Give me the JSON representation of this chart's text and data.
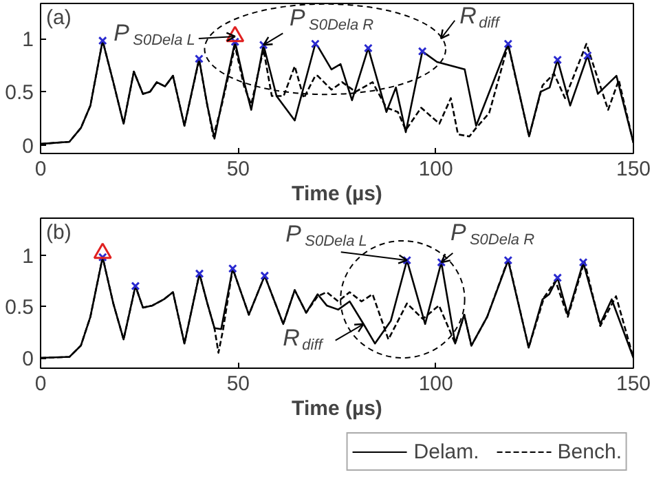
{
  "chart_data": [
    {
      "type": "line",
      "xlabel": "Time (µs)",
      "xlim": [
        0,
        150
      ],
      "xticks": [
        0,
        50,
        100,
        150
      ],
      "ylim": [
        -0.08,
        1.33
      ],
      "yticks": [
        0,
        0.5,
        1
      ],
      "grid": false,
      "legend": false,
      "series": [
        {
          "color": "#000000",
          "line_style": "solid",
          "x": [
            0,
            7.3,
            10.2,
            12.6,
            15.7,
            18.4,
            21,
            23.6,
            25.9,
            27.7,
            29.4,
            31.5,
            33.5,
            36.4,
            40.1,
            42.2,
            44,
            45.7,
            49.2,
            51.5,
            53.3,
            56.4,
            59.7,
            64.3,
            69.5,
            70.1,
            73.6,
            75.9,
            78.8,
            82.9,
            87.5,
            89.9,
            92.4,
            96.6,
            100.3,
            107.3,
            110.2,
            118.3,
            123.6,
            126.5,
            128.8,
            130.8,
            134,
            138.4,
            141,
            145.7,
            150
          ],
          "values": [
            0.01,
            0.03,
            0.16,
            0.37,
            0.98,
            0.59,
            0.2,
            0.69,
            0.48,
            0.5,
            0.59,
            0.55,
            0.65,
            0.18,
            0.81,
            0.37,
            0.06,
            0.37,
            0.97,
            0.59,
            0.33,
            0.94,
            0.46,
            0.23,
            0.95,
            0.93,
            0.71,
            0.76,
            0.42,
            0.91,
            0.31,
            0.54,
            0.12,
            0.88,
            0.78,
            0.71,
            0.18,
            0.95,
            0.08,
            0.5,
            0.54,
            0.8,
            0.37,
            0.84,
            0.48,
            0.65,
            0.02
          ]
        },
        {
          "color": "#000000",
          "line_style": "dashed",
          "x": [
            0,
            7.3,
            10.2,
            12.6,
            15.7,
            18.4,
            21,
            23.6,
            25.9,
            27.7,
            29.4,
            31.5,
            33.5,
            36.4,
            40.1,
            42.2,
            43.7,
            45.7,
            49.2,
            51.5,
            53.3,
            56.4,
            58.5,
            61.5,
            64.3,
            66.6,
            69.5,
            70.1,
            73.6,
            76.3,
            79.7,
            84,
            87.5,
            90.4,
            92.4,
            96.3,
            100.9,
            103.8,
            105.6,
            108.5,
            110.2,
            113.5,
            118.3,
            123.6,
            127,
            129.9,
            132.7,
            138.1,
            143.6,
            146.3,
            150
          ],
          "values": [
            0.01,
            0.03,
            0.16,
            0.37,
            0.98,
            0.59,
            0.2,
            0.69,
            0.48,
            0.5,
            0.59,
            0.55,
            0.65,
            0.18,
            0.8,
            0.37,
            0.08,
            0.35,
            0.93,
            0.55,
            0.38,
            0.9,
            0.46,
            0.46,
            0.74,
            0.44,
            0.65,
            0.65,
            0.52,
            0.59,
            0.5,
            0.59,
            0.35,
            0.31,
            0.14,
            0.35,
            0.2,
            0.44,
            0.1,
            0.08,
            0.16,
            0.3,
            0.94,
            0.08,
            0.56,
            0.67,
            0.44,
            0.95,
            0.33,
            0.61,
            0.02
          ]
        },
        {
          "type": "scatter",
          "marker": "cross",
          "color": "#2a2ad0",
          "x": [
            15.7,
            40.1,
            49.2,
            56.4,
            69.5,
            82.9,
            96.6,
            118.3,
            130.8,
            138.4
          ],
          "values": [
            0.98,
            0.81,
            0.97,
            0.94,
            0.95,
            0.91,
            0.88,
            0.95,
            0.8,
            0.84
          ]
        },
        {
          "type": "scatter",
          "marker": "triangle",
          "color": "#e02020",
          "x": [
            49.2
          ],
          "values": [
            1.02
          ]
        }
      ],
      "annotations": [
        "(a)",
        {
          "text": "P$_{S0Dela L}$",
          "x": 49.2,
          "y": 1.02
        },
        {
          "text": "P$_{S0Dela R}$",
          "x": 56.4,
          "y": 0.94
        },
        "R$_{diff}$"
      ]
    },
    {
      "type": "line",
      "xlabel": "Time (µs)",
      "xlim": [
        0,
        150
      ],
      "xticks": [
        0,
        50,
        100,
        150
      ],
      "ylim": [
        -0.1,
        1.36
      ],
      "yticks": [
        0,
        0.5,
        1
      ],
      "grid": false,
      "legend": "bottom right",
      "series": [
        {
          "name": "Delam.",
          "color": "#000000",
          "line_style": "solid",
          "x": [
            0,
            7.3,
            10.2,
            12.6,
            15.7,
            18.4,
            21,
            24,
            25.9,
            28.3,
            31.2,
            33.5,
            36.4,
            40.2,
            42.2,
            44,
            45.7,
            48.6,
            52.7,
            56.7,
            61.4,
            64.3,
            67.2,
            70.1,
            72.4,
            75.3,
            78.2,
            81.7,
            84.6,
            88.6,
            92.7,
            97.3,
            101.4,
            104.9,
            107.2,
            109,
            113,
            118.3,
            123.5,
            127,
            128.7,
            130.8,
            133.4,
            137.3,
            141.6,
            144.5,
            150
          ],
          "values": [
            0,
            0.01,
            0.12,
            0.4,
            0.98,
            0.53,
            0.18,
            0.7,
            0.49,
            0.51,
            0.57,
            0.64,
            0.14,
            0.82,
            0.53,
            0.29,
            0.28,
            0.87,
            0.42,
            0.8,
            0.33,
            0.66,
            0.44,
            0.62,
            0.51,
            0.47,
            0.55,
            0.33,
            0.14,
            0.36,
            0.95,
            0.33,
            0.93,
            0.14,
            0.42,
            0.12,
            0.4,
            0.95,
            0.1,
            0.57,
            0.62,
            0.78,
            0.42,
            0.93,
            0.33,
            0.57,
            0
          ]
        },
        {
          "name": "Bench.",
          "color": "#000000",
          "line_style": "dashed",
          "x": [
            0,
            7.3,
            10.2,
            12.6,
            15.7,
            18.4,
            21,
            24,
            25.9,
            28.3,
            31.2,
            33.5,
            36.4,
            40.2,
            42.2,
            44,
            45,
            46.2,
            48.6,
            52.7,
            56.7,
            61.4,
            64.3,
            67.2,
            70.1,
            72.4,
            75.3,
            78.2,
            81.2,
            84,
            88,
            92.7,
            96.7,
            100.8,
            103.7,
            104.9,
            107.2,
            109,
            113,
            118.3,
            123.5,
            127.4,
            130.3,
            133.4,
            137.6,
            141.6,
            145.6,
            150
          ],
          "values": [
            0,
            0.01,
            0.12,
            0.4,
            0.98,
            0.53,
            0.18,
            0.7,
            0.49,
            0.51,
            0.57,
            0.64,
            0.14,
            0.82,
            0.53,
            0.29,
            0.05,
            0.28,
            0.87,
            0.42,
            0.8,
            0.33,
            0.66,
            0.44,
            0.6,
            0.64,
            0.55,
            0.64,
            0.55,
            0.62,
            0.18,
            0.53,
            0.38,
            0.51,
            0.25,
            0.14,
            0.42,
            0.12,
            0.4,
            0.96,
            0.1,
            0.59,
            0.75,
            0.4,
            0.94,
            0.31,
            0.6,
            0
          ]
        },
        {
          "type": "scatter",
          "marker": "cross",
          "color": "#2a2ad0",
          "x": [
            15.7,
            24,
            40.2,
            48.6,
            56.7,
            92.7,
            101.4,
            118.3,
            130.8,
            137.3
          ],
          "values": [
            0.98,
            0.7,
            0.82,
            0.87,
            0.8,
            0.95,
            0.93,
            0.95,
            0.78,
            0.93
          ]
        },
        {
          "type": "scatter",
          "marker": "triangle",
          "color": "#e02020",
          "x": [
            15.7
          ],
          "values": [
            1.02
          ]
        }
      ],
      "annotations": [
        "(b)",
        {
          "text": "P$_{S0Dela L}$",
          "x": 92.7,
          "y": 0.95
        },
        {
          "text": "P$_{S0Dela R}$",
          "x": 101.4,
          "y": 0.93
        },
        {
          "text": "R$_{diff}$",
          "x": 81.7,
          "y": 0.33
        }
      ]
    }
  ]
}
